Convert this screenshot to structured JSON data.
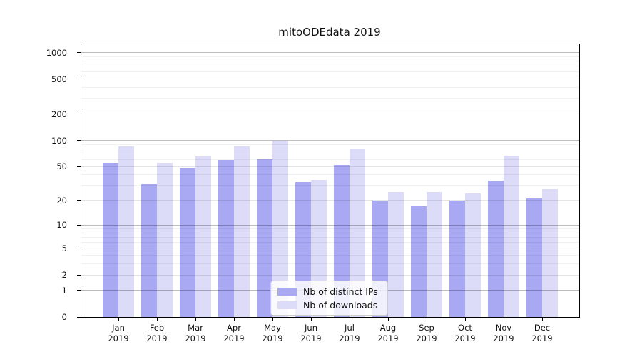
{
  "title": "mitoODEdata 2019",
  "chart_data": {
    "type": "bar",
    "title": "mitoODEdata 2019",
    "categories": [
      "Jan",
      "Feb",
      "Mar",
      "Apr",
      "May",
      "Jun",
      "Jul",
      "Aug",
      "Sep",
      "Oct",
      "Nov",
      "Dec"
    ],
    "year_label": "2019",
    "series": [
      {
        "name": "Nb of distinct IPs",
        "color": "#a9a9f3",
        "values": [
          55,
          31,
          48,
          60,
          61,
          33,
          52,
          20,
          17,
          20,
          34,
          21
        ]
      },
      {
        "name": "Nb of downloads",
        "color": "#dcdcf9",
        "values": [
          86,
          55,
          65,
          86,
          100,
          35,
          80,
          25,
          25,
          24,
          67,
          27
        ]
      }
    ],
    "xlabel": "",
    "ylabel": "",
    "y_scale": "log1p",
    "ylim": [
      0,
      1240
    ],
    "y_ticks": [
      0,
      1,
      2,
      5,
      10,
      20,
      50,
      100,
      200,
      500,
      1000
    ],
    "gridlines": {
      "major": [
        1,
        10,
        100,
        1000
      ],
      "mid": [
        2,
        5,
        20,
        50,
        200,
        500
      ],
      "minor": [
        3,
        4,
        6,
        7,
        8,
        9,
        30,
        40,
        60,
        70,
        80,
        90,
        300,
        400,
        600,
        700,
        800,
        900
      ]
    },
    "grid": "on",
    "legend_position": "lower center"
  }
}
